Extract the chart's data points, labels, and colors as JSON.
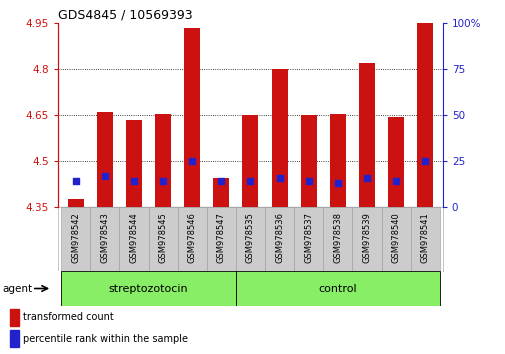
{
  "title": "GDS4845 / 10569393",
  "samples": [
    "GSM978542",
    "GSM978543",
    "GSM978544",
    "GSM978545",
    "GSM978546",
    "GSM978547",
    "GSM978535",
    "GSM978536",
    "GSM978537",
    "GSM978538",
    "GSM978539",
    "GSM978540",
    "GSM978541"
  ],
  "transformed_count": [
    4.375,
    4.66,
    4.635,
    4.655,
    4.935,
    4.445,
    4.65,
    4.8,
    4.65,
    4.655,
    4.82,
    4.645,
    4.95
  ],
  "percentile_rank": [
    4.435,
    4.45,
    4.435,
    4.435,
    4.5,
    4.435,
    4.435,
    4.445,
    4.435,
    4.43,
    4.445,
    4.435,
    4.5
  ],
  "ylim": [
    4.35,
    4.95
  ],
  "yticks": [
    4.35,
    4.5,
    4.65,
    4.8,
    4.95
  ],
  "ytick_labels": [
    "4.35",
    "4.5",
    "4.65",
    "4.8",
    "4.95"
  ],
  "right_yticks": [
    0,
    25,
    50,
    75,
    100
  ],
  "right_ytick_labels": [
    "0",
    "25",
    "50",
    "75",
    "100%"
  ],
  "bar_color": "#CC1111",
  "blue_color": "#2222CC",
  "strep_color": "#88EE66",
  "ctrl_color": "#88EE66",
  "agent_label": "agent",
  "strep_label": "streptozotocin",
  "ctrl_label": "control",
  "legend_red": "transformed count",
  "legend_blue": "percentile rank within the sample",
  "bar_width": 0.55,
  "n_strep": 6,
  "n_ctrl": 7
}
